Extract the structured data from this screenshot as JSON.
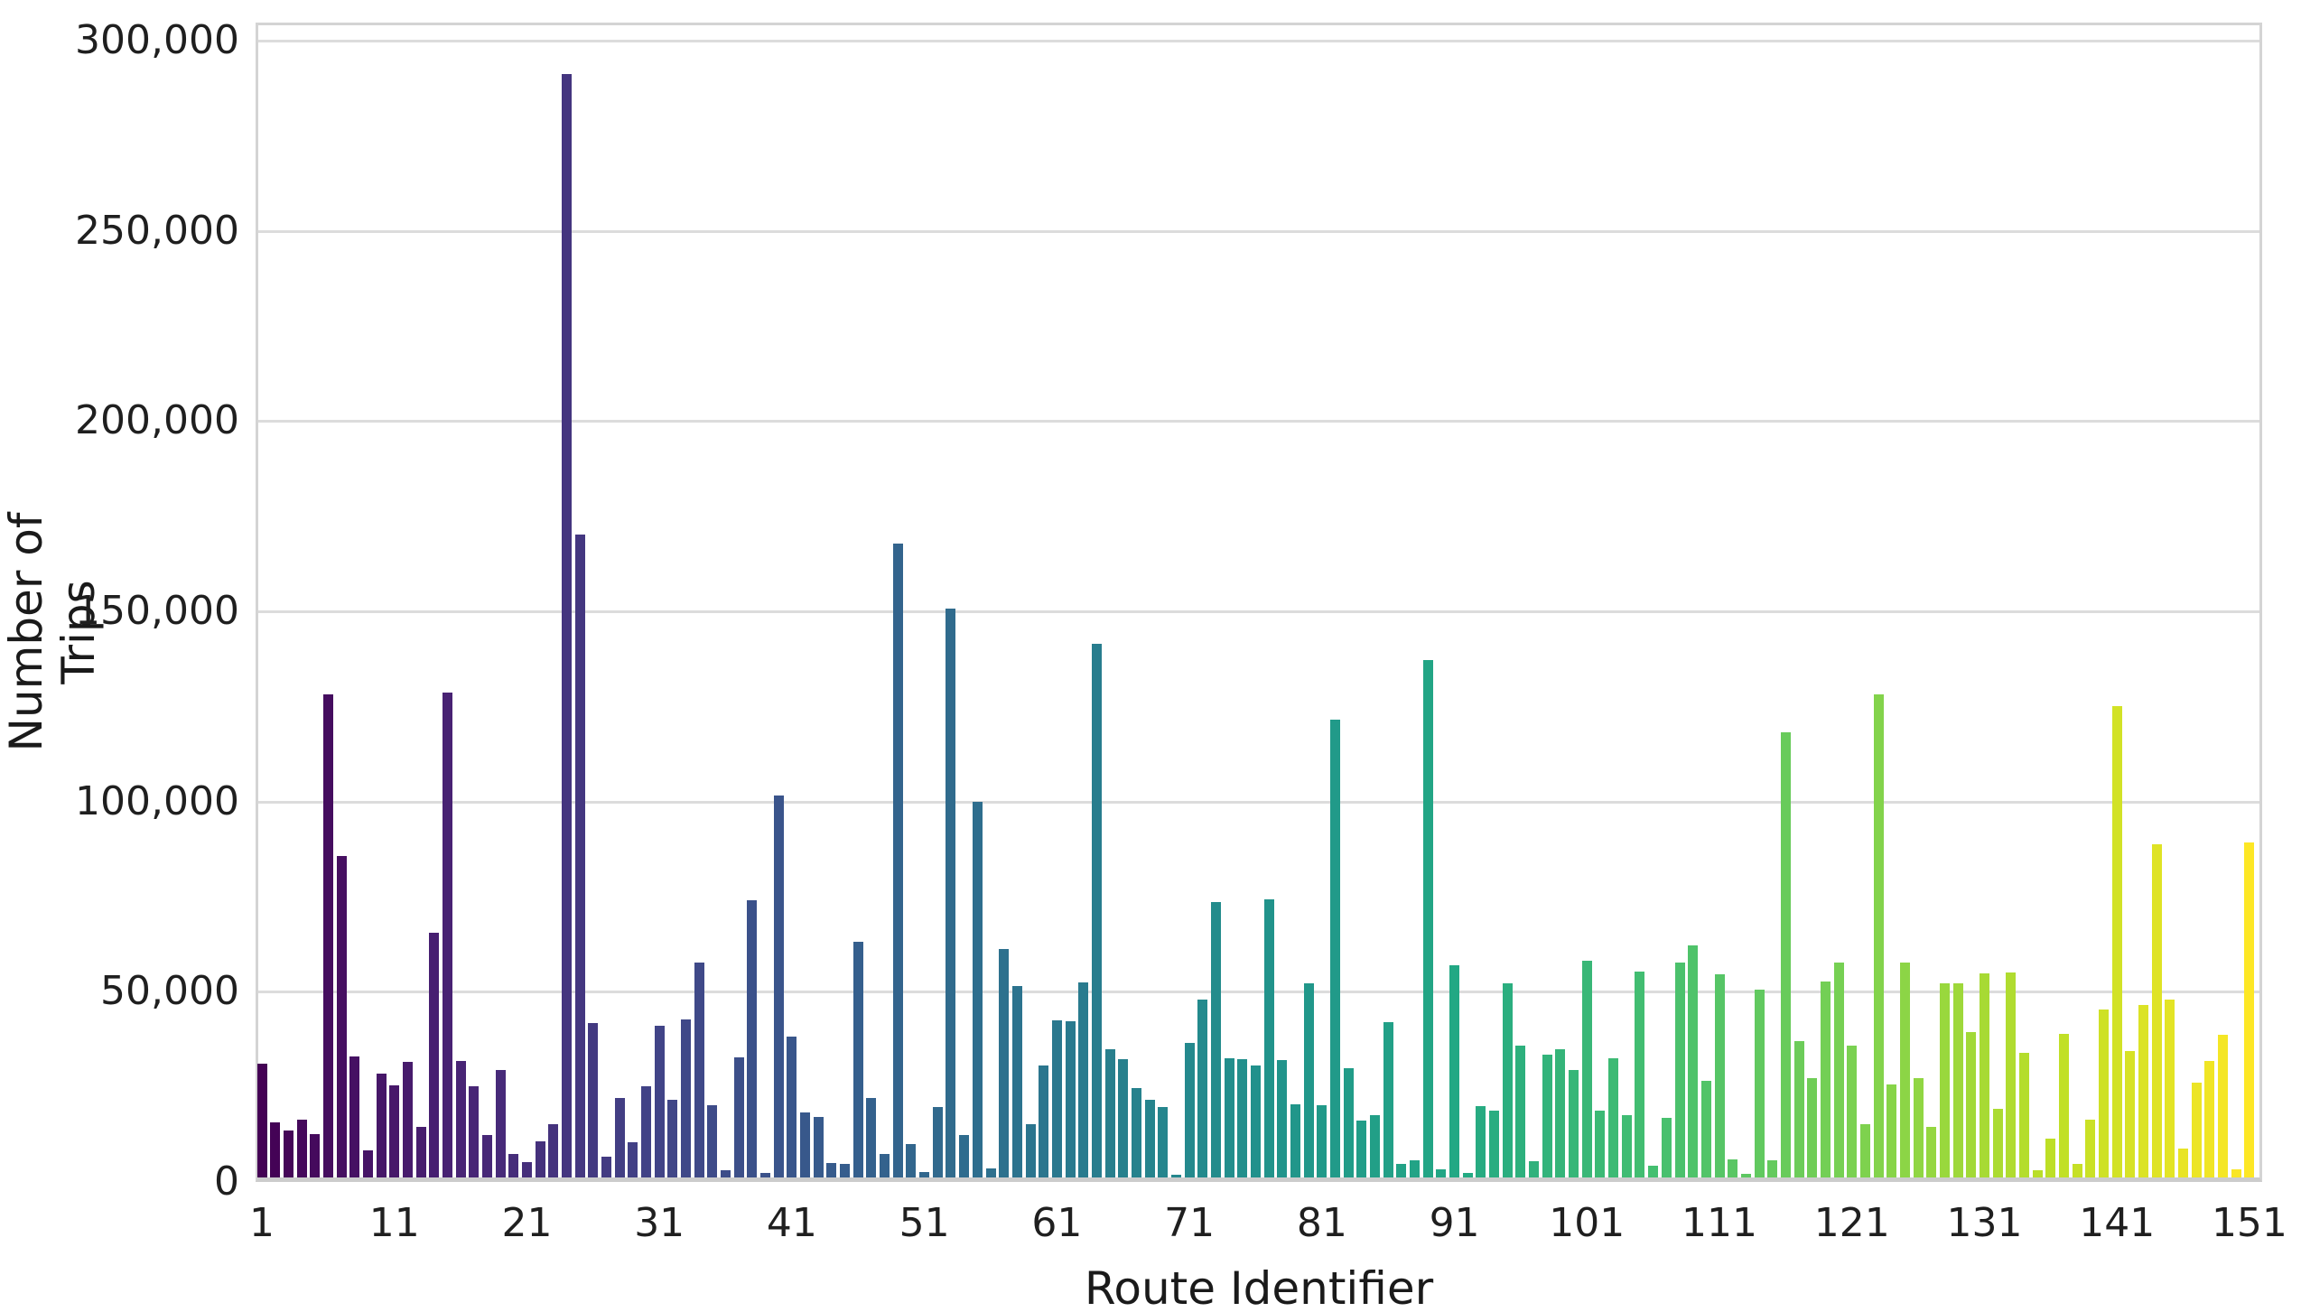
{
  "chart_data": {
    "type": "bar",
    "title": "",
    "xlabel": "Route Identifier",
    "ylabel": "Number of Trips",
    "x_start": 1,
    "n_bars": 151,
    "x_tick_values": [
      1,
      11,
      21,
      31,
      41,
      51,
      61,
      71,
      81,
      91,
      101,
      111,
      121,
      131,
      141,
      151
    ],
    "y_ticks": [
      {
        "value": 0,
        "label": "0"
      },
      {
        "value": 50000,
        "label": "50,000"
      },
      {
        "value": 100000,
        "label": "100,000"
      },
      {
        "value": 150000,
        "label": "150,000"
      },
      {
        "value": 200000,
        "label": "200,000"
      },
      {
        "value": 250000,
        "label": "250,000"
      },
      {
        "value": 300000,
        "label": "300,000"
      }
    ],
    "ylim": [
      0,
      304000
    ],
    "grid": "horizontal",
    "legend": "none",
    "palette": "viridis",
    "viridis_stops": [
      "#440154",
      "#482475",
      "#414487",
      "#355f8d",
      "#2a788e",
      "#21918c",
      "#22a884",
      "#44bf70",
      "#7ad151",
      "#bddf26",
      "#fde725"
    ],
    "values": [
      30000,
      14400,
      12300,
      15100,
      11400,
      127000,
      84500,
      31800,
      7200,
      27300,
      24300,
      30300,
      13200,
      64200,
      127500,
      30500,
      23900,
      11100,
      28300,
      6100,
      4000,
      9500,
      14000,
      290000,
      169000,
      40500,
      5500,
      20800,
      9300,
      23900,
      39800,
      20500,
      41600,
      56600,
      19000,
      1800,
      31600,
      72800,
      1200,
      100400,
      37100,
      17100,
      15800,
      3800,
      3500,
      61900,
      20900,
      6100,
      166500,
      8700,
      1400,
      18500,
      149500,
      11200,
      98800,
      2400,
      60000,
      50400,
      14100,
      29500,
      41300,
      41100,
      51200,
      140300,
      33700,
      31000,
      23500,
      20300,
      18400,
      800,
      35300,
      46700,
      72400,
      31400,
      31200,
      29400,
      73200,
      30800,
      19300,
      51000,
      19100,
      120400,
      28700,
      14900,
      16400,
      40800,
      3600,
      4500,
      136000,
      2100,
      55700,
      1300,
      18700,
      17500,
      51000,
      34700,
      4300,
      32200,
      33700,
      28200,
      57000,
      17500,
      31400,
      16400,
      54100,
      3200,
      15600,
      56500,
      60900,
      25400,
      53500,
      4700,
      900,
      49300,
      4400,
      117000,
      35900,
      26200,
      51400,
      56500,
      34700,
      14000,
      127000,
      24500,
      56500,
      26000,
      13200,
      51000,
      51000,
      38100,
      53700,
      18100,
      53900,
      32700,
      1900,
      10200,
      37800,
      3600,
      15300,
      44200,
      124000,
      33300,
      45300,
      87500,
      46800,
      7500,
      25000,
      30600,
      37500,
      2100,
      88000
    ],
    "text_color": "#1f1f1f",
    "gridline_color": "#dcdcdc",
    "background_color": "#ffffff"
  }
}
